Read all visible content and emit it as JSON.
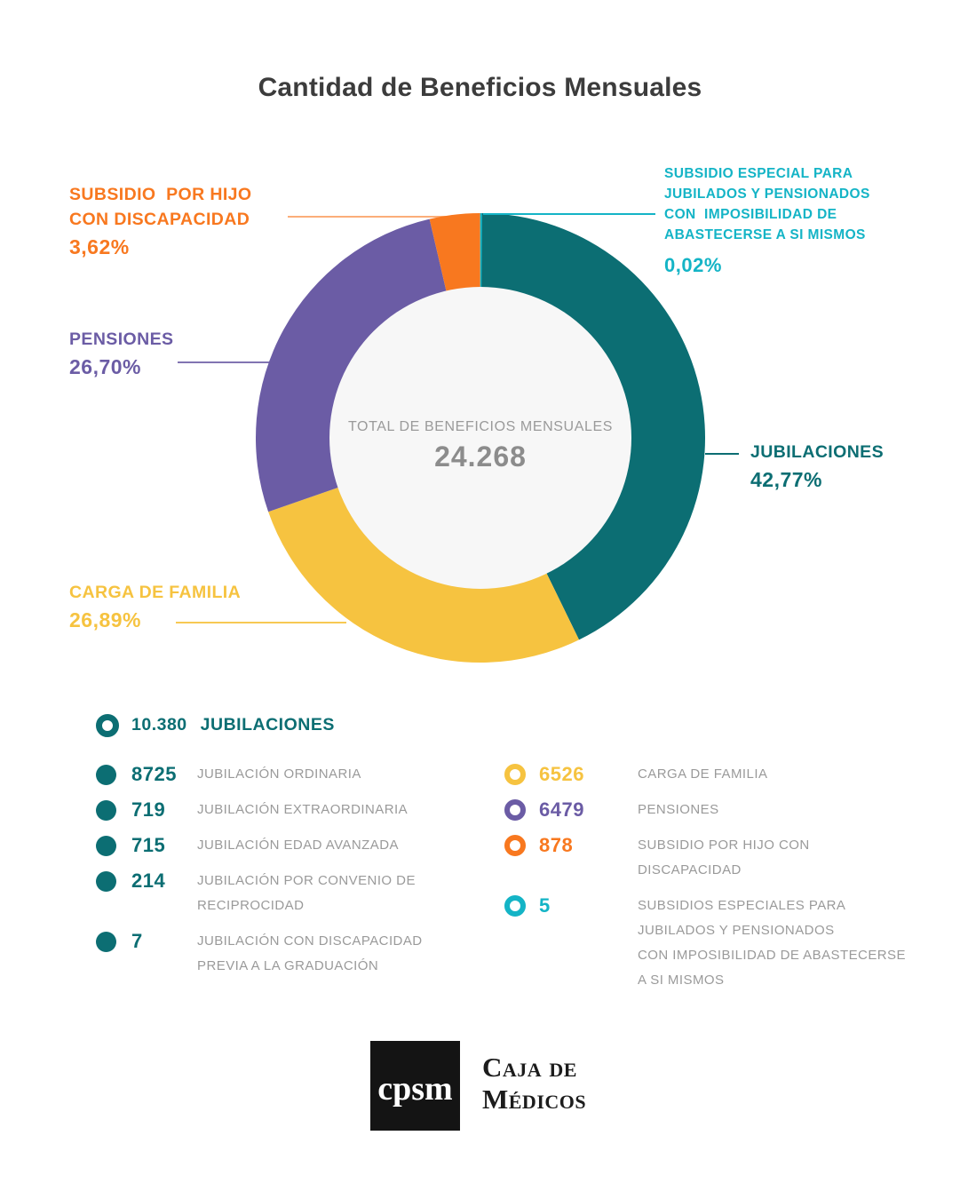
{
  "title": "Cantidad de Beneficios Mensuales",
  "chart_data": {
    "type": "pie",
    "title": "Cantidad de Beneficios Mensuales",
    "center_label": "TOTAL DE BENEFICIOS MENSUALES",
    "center_value": "24.268",
    "total": 24268,
    "start_angle_deg": 0,
    "direction": "clockwise",
    "series": [
      {
        "name": "JUBILACIONES",
        "value": 10380,
        "pct_num": 42.77,
        "pct": "42,77%",
        "color": "#0c6e73"
      },
      {
        "name": "CARGA DE FAMILIA",
        "value": 6526,
        "pct_num": 26.89,
        "pct": "26,89%",
        "color": "#f6c340"
      },
      {
        "name": "PENSIONES",
        "value": 6479,
        "pct_num": 26.7,
        "pct": "26,70%",
        "color": "#6b5ca5"
      },
      {
        "name": "SUBSIDIO POR HIJO CON DISCAPACIDAD",
        "value": 878,
        "pct_num": 3.62,
        "pct": "3,62%",
        "color": "#f8781f"
      },
      {
        "name": "SUBSIDIO ESPECIAL PARA JUBILADOS Y PENSIONADOS CON IMPOSIBILIDAD DE ABASTECERSE A SI MISMOS",
        "value": 5,
        "pct_num": 0.02,
        "pct": "0,02%",
        "color": "#14b4c6"
      }
    ],
    "hole_color": "#f7f7f7"
  },
  "callouts": {
    "hijo": {
      "name": "SUBSIDIO  POR HIJO\nCON DISCAPACIDAD",
      "pct": "3,62%",
      "color": "#f8781f"
    },
    "pensiones": {
      "name": "PENSIONES",
      "pct": "26,70%",
      "color": "#6b5ca5"
    },
    "carga": {
      "name": "CARGA DE FAMILIA",
      "pct": "26,89%",
      "color": "#f6c340"
    },
    "jubilaciones": {
      "name": "JUBILACIONES",
      "pct": "42,77%",
      "color": "#0c6e73"
    },
    "especial": {
      "name": "SUBSIDIO ESPECIAL PARA\nJUBILADOS Y PENSIONADOS\nCON  IMPOSIBILIDAD DE\nABASTECERSE A SI MISMOS",
      "pct": "0,02%",
      "color": "#14b4c6"
    }
  },
  "legend": {
    "total": {
      "value": "10.380",
      "label": "JUBILACIONES",
      "color": "#0c6e73"
    },
    "left": [
      {
        "value": "8725",
        "label": "JUBILACIÓN ORDINARIA",
        "color": "#0c6e73"
      },
      {
        "value": "719",
        "label": "JUBILACIÓN EXTRAORDINARIA",
        "color": "#0c6e73"
      },
      {
        "value": "715",
        "label": "JUBILACIÓN EDAD AVANZADA",
        "color": "#0c6e73"
      },
      {
        "value": "214",
        "label": "JUBILACIÓN POR CONVENIO DE\nRECIPROCIDAD",
        "color": "#0c6e73"
      },
      {
        "value": "7",
        "label": "JUBILACIÓN CON DISCAPACIDAD\nPREVIA A LA GRADUACIÓN",
        "color": "#0c6e73"
      }
    ],
    "right": [
      {
        "value": "6526",
        "label": "CARGA DE FAMILIA",
        "color": "#f6c340"
      },
      {
        "value": "6479",
        "label": "PENSIONES",
        "color": "#6b5ca5"
      },
      {
        "value": "878",
        "label": "SUBSIDIO POR HIJO CON\nDISCAPACIDAD",
        "color": "#f8781f"
      },
      {
        "value": "5",
        "label": "SUBSIDIOS ESPECIALES PARA\nJUBILADOS Y PENSIONADOS\nCON IMPOSIBILIDAD DE ABASTECERSE\nA SI MISMOS",
        "color": "#14b4c6"
      }
    ]
  },
  "footer": {
    "logo_text": "cpsm",
    "brand": "Caja de\nMédicos"
  }
}
